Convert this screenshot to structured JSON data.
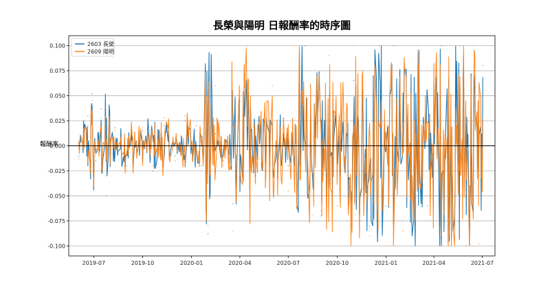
{
  "chart_data": {
    "type": "line",
    "title": "長榮與陽明 日報酬率的時序圖",
    "xlabel": "",
    "ylabel": "報酬率",
    "xlim": [
      "2019-05-15",
      "2021-07-25"
    ],
    "ylim": [
      -0.11,
      0.11
    ],
    "grid": "horizontal",
    "legend": "top-left",
    "x_ticks": [
      "2019-07",
      "2019-10",
      "2020-01",
      "2020-04",
      "2020-07",
      "2020-10",
      "2021-01",
      "2021-04",
      "2021-07"
    ],
    "x_tick_dates": [
      "2019-07-01",
      "2019-10-01",
      "2020-01-01",
      "2020-04-01",
      "2020-07-01",
      "2020-10-01",
      "2021-01-01",
      "2021-04-01",
      "2021-07-01"
    ],
    "y_ticks": [
      "-0.100",
      "-0.075",
      "-0.050",
      "-0.025",
      "0.000",
      "0.025",
      "0.050",
      "0.075",
      "0.100"
    ],
    "y_tick_values": [
      -0.1,
      -0.075,
      -0.05,
      -0.025,
      0,
      0.025,
      0.05,
      0.075,
      0.1
    ],
    "zero_line": 0,
    "date_range": [
      "2019-06-03",
      "2021-07-02"
    ],
    "series": [
      {
        "name": "2603 長榮",
        "color": "#1f77b4",
        "points": [
          [
            "2019-06-03",
            -0.01
          ],
          [
            "2019-06-20",
            0.03
          ],
          [
            "2019-06-28",
            0.052
          ],
          [
            "2019-07-05",
            -0.015
          ],
          [
            "2019-07-15",
            0.037
          ],
          [
            "2019-07-25",
            -0.05
          ],
          [
            "2019-08-10",
            0.018
          ],
          [
            "2019-09-01",
            -0.02
          ],
          [
            "2019-10-01",
            0.015
          ],
          [
            "2019-10-20",
            -0.025
          ],
          [
            "2019-11-10",
            0.02
          ],
          [
            "2019-12-01",
            -0.01
          ],
          [
            "2019-12-20",
            0.025
          ],
          [
            "2020-01-10",
            0.02
          ],
          [
            "2020-01-20",
            -0.02
          ],
          [
            "2020-02-01",
            -0.088
          ],
          [
            "2020-02-15",
            0.012
          ],
          [
            "2020-03-01",
            -0.015
          ],
          [
            "2020-03-19",
            -0.058
          ],
          [
            "2020-04-01",
            0.045
          ],
          [
            "2020-04-15",
            0.061
          ],
          [
            "2020-05-01",
            -0.03
          ],
          [
            "2020-06-01",
            0.035
          ],
          [
            "2020-07-01",
            -0.02
          ],
          [
            "2020-08-01",
            0.1
          ],
          [
            "2020-08-15",
            -0.04
          ],
          [
            "2020-09-01",
            -0.07
          ],
          [
            "2020-09-15",
            0.05
          ],
          [
            "2020-10-01",
            -0.03
          ],
          [
            "2020-11-01",
            0.065
          ],
          [
            "2020-12-01",
            -0.08
          ],
          [
            "2020-12-20",
            0.1
          ],
          [
            "2021-01-01",
            -0.06
          ],
          [
            "2021-01-15",
            0.1
          ],
          [
            "2021-02-01",
            -0.075
          ],
          [
            "2021-03-01",
            0.095
          ],
          [
            "2021-03-20",
            -0.06
          ],
          [
            "2021-04-15",
            0.1
          ],
          [
            "2021-05-01",
            -0.09
          ],
          [
            "2021-05-20",
            0.1
          ],
          [
            "2021-06-01",
            -0.1
          ],
          [
            "2021-06-15",
            0.095
          ],
          [
            "2021-06-25",
            -0.03
          ],
          [
            "2021-07-02",
            0.08
          ]
        ]
      },
      {
        "name": "2609 陽明",
        "color": "#ff7f0e",
        "points": [
          [
            "2019-06-03",
            -0.013
          ],
          [
            "2019-06-20",
            0.02
          ],
          [
            "2019-06-28",
            0.045
          ],
          [
            "2019-07-05",
            -0.01
          ],
          [
            "2019-07-15",
            0.028
          ],
          [
            "2019-07-25",
            -0.03
          ],
          [
            "2019-08-10",
            0.015
          ],
          [
            "2019-09-01",
            -0.025
          ],
          [
            "2019-10-01",
            0.018
          ],
          [
            "2019-10-20",
            -0.02
          ],
          [
            "2019-11-10",
            0.028
          ],
          [
            "2019-12-01",
            -0.015
          ],
          [
            "2019-12-20",
            0.03
          ],
          [
            "2020-01-10",
            0.015
          ],
          [
            "2020-01-20",
            -0.025
          ],
          [
            "2020-02-01",
            -0.08
          ],
          [
            "2020-02-15",
            0.06
          ],
          [
            "2020-03-01",
            -0.02
          ],
          [
            "2020-03-19",
            -0.085
          ],
          [
            "2020-04-01",
            0.055
          ],
          [
            "2020-04-15",
            0.1
          ],
          [
            "2020-05-01",
            -0.035
          ],
          [
            "2020-06-01",
            0.06
          ],
          [
            "2020-07-01",
            -0.045
          ],
          [
            "2020-08-01",
            0.1
          ],
          [
            "2020-08-15",
            -0.07
          ],
          [
            "2020-09-01",
            -0.065
          ],
          [
            "2020-09-15",
            0.09
          ],
          [
            "2020-10-01",
            -0.06
          ],
          [
            "2020-11-01",
            0.1
          ],
          [
            "2020-12-01",
            -0.09
          ],
          [
            "2020-12-20",
            0.1
          ],
          [
            "2021-01-01",
            -0.1
          ],
          [
            "2021-01-15",
            0.1
          ],
          [
            "2021-02-01",
            -0.085
          ],
          [
            "2021-03-01",
            0.1
          ],
          [
            "2021-03-20",
            -0.075
          ],
          [
            "2021-04-15",
            0.1
          ],
          [
            "2021-05-01",
            -0.1
          ],
          [
            "2021-05-20",
            0.1
          ],
          [
            "2021-06-01",
            -0.1
          ],
          [
            "2021-06-15",
            0.1
          ],
          [
            "2021-06-25",
            -0.098
          ],
          [
            "2021-07-02",
            0.1
          ]
        ]
      }
    ]
  }
}
